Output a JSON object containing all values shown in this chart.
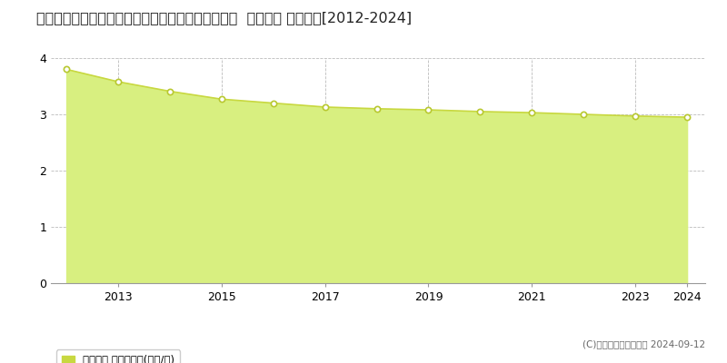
{
  "title": "青森県北津軽郡鶴田町大字鶴田字鷹ノ尾６８番１７  地価公示 地価推移[2012-2024]",
  "years": [
    2012,
    2013,
    2014,
    2015,
    2016,
    2017,
    2018,
    2019,
    2020,
    2021,
    2022,
    2023,
    2024
  ],
  "values": [
    3.8,
    3.58,
    3.41,
    3.27,
    3.2,
    3.13,
    3.1,
    3.08,
    3.05,
    3.03,
    3.0,
    2.97,
    2.95
  ],
  "line_color": "#c8d840",
  "fill_color": "#d8ef80",
  "marker_color": "#ffffff",
  "marker_edge_color": "#b8c830",
  "ylim": [
    0,
    4
  ],
  "yticks": [
    0,
    1,
    2,
    3,
    4
  ],
  "grid_color": "#bbbbbb",
  "background_color": "#ffffff",
  "legend_label": "地価公示 平均坪単価(万円/坪)",
  "legend_color": "#c8d840",
  "copyright_text": "(C)土地価格ドットコム 2024-09-12",
  "title_fontsize": 11.5,
  "axis_fontsize": 9,
  "legend_fontsize": 8.5
}
